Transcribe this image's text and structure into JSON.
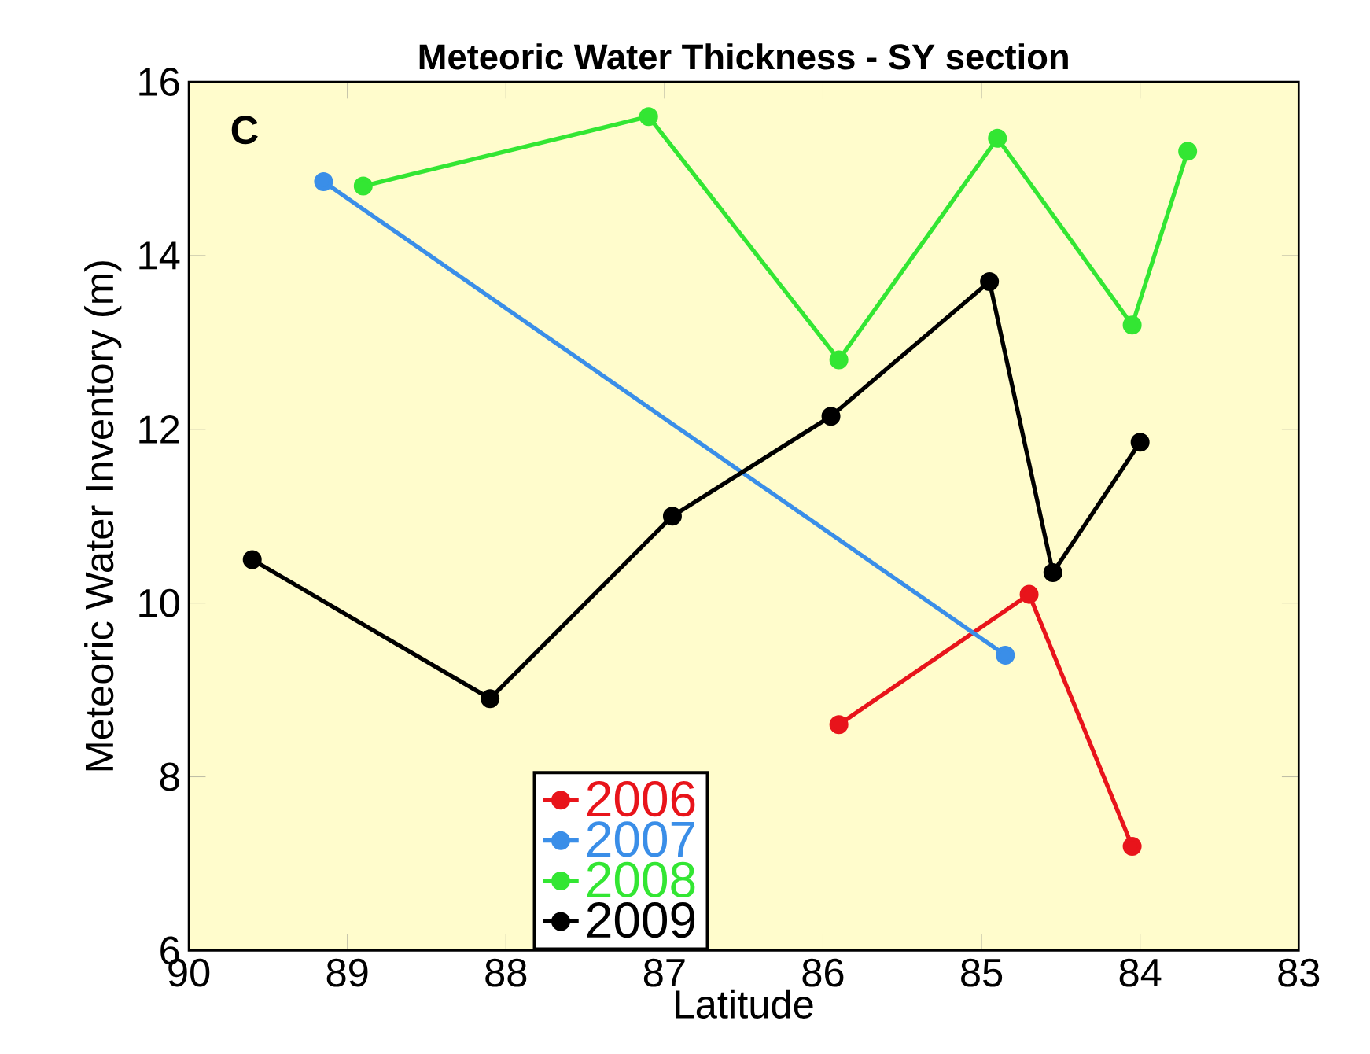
{
  "chart_data": {
    "type": "line",
    "title": "Meteoric Water Thickness - SY section",
    "xlabel": "Latitude",
    "ylabel": "Meteoric Water Inventory (m)",
    "annotations": [
      "C"
    ],
    "xlim": [
      90,
      83
    ],
    "xticks": [
      90,
      89,
      88,
      87,
      86,
      85,
      84,
      83
    ],
    "ylim": [
      6,
      16
    ],
    "yticks": [
      6,
      8,
      10,
      12,
      14,
      16
    ],
    "marker": "circle",
    "line_style": "solid",
    "legend": "bottom",
    "grid": false,
    "series": [
      {
        "name": "2006",
        "color": "#e8141b",
        "x": [
          85.9,
          84.7,
          84.05
        ],
        "values": [
          8.6,
          10.1,
          7.2
        ]
      },
      {
        "name": "2007",
        "color": "#3a8ee8",
        "x": [
          89.15,
          84.85
        ],
        "values": [
          14.85,
          9.4
        ]
      },
      {
        "name": "2008",
        "color": "#33e633",
        "x": [
          88.9,
          87.1,
          85.9,
          84.9,
          84.05,
          83.7
        ],
        "values": [
          14.8,
          15.6,
          12.8,
          15.35,
          13.2,
          15.2
        ]
      },
      {
        "name": "2009",
        "color": "#000000",
        "x": [
          89.6,
          88.1,
          86.95,
          85.95,
          84.95,
          84.55,
          84.0
        ],
        "values": [
          10.5,
          8.9,
          11.0,
          12.15,
          13.7,
          10.35,
          11.85
        ]
      }
    ]
  }
}
